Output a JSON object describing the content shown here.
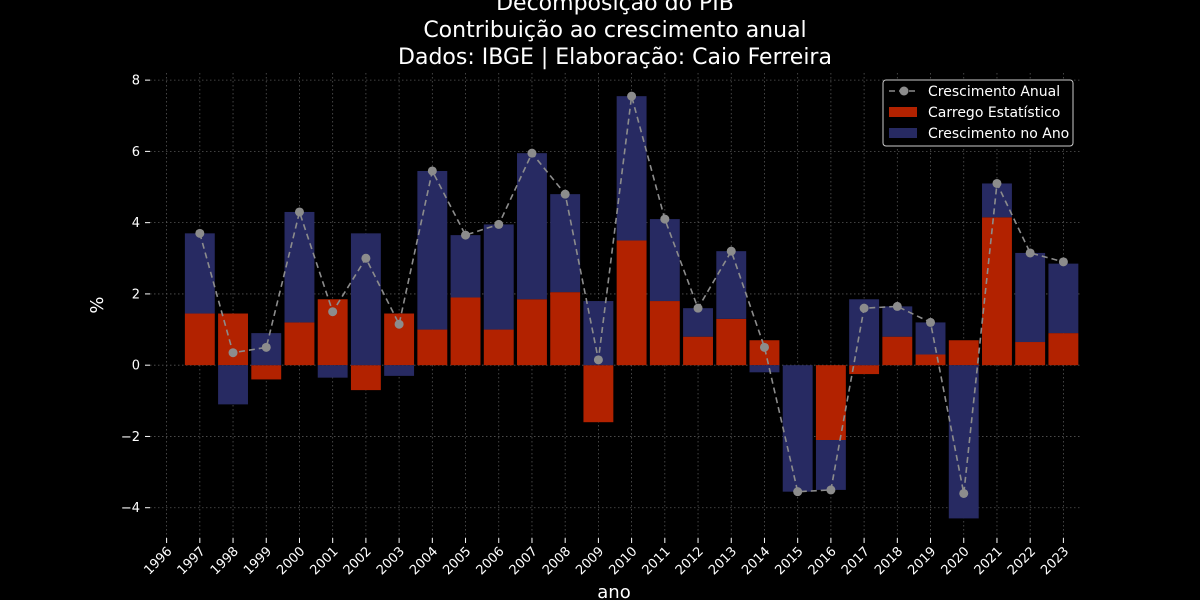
{
  "chart_data": {
    "type": "bar",
    "title_lines": [
      "Decomposição do PIB",
      "Contribuição ao crescimento anual",
      "Dados: IBGE | Elaboração: Caio Ferreira"
    ],
    "xlabel": "ano",
    "ylabel": "%",
    "ylim": [
      -4.85,
      8.2
    ],
    "yticks": [
      -4,
      -2,
      0,
      2,
      4,
      6,
      8
    ],
    "categories": [
      "1996",
      "1997",
      "1998",
      "1999",
      "2000",
      "2001",
      "2002",
      "2003",
      "2004",
      "2005",
      "2006",
      "2007",
      "2008",
      "2009",
      "2010",
      "2011",
      "2012",
      "2013",
      "2014",
      "2015",
      "2016",
      "2017",
      "2018",
      "2019",
      "2020",
      "2021",
      "2022",
      "2023"
    ],
    "grid": true,
    "legend_position": "top-right",
    "series": [
      {
        "name": "Crescimento Anual",
        "kind": "line",
        "color": "#8c8c8c",
        "values": [
          null,
          3.7,
          0.35,
          0.5,
          4.3,
          1.5,
          3.0,
          1.15,
          5.45,
          3.65,
          3.95,
          5.95,
          4.8,
          0.15,
          7.55,
          4.1,
          1.6,
          3.2,
          0.5,
          -3.55,
          -3.5,
          1.6,
          1.65,
          1.2,
          -3.6,
          5.1,
          3.15,
          2.9
        ]
      },
      {
        "name": "Carrego Estatístico",
        "kind": "bar",
        "color": "#b22200",
        "values": [
          null,
          1.45,
          1.45,
          -0.4,
          1.2,
          1.85,
          -0.7,
          1.45,
          1.0,
          1.9,
          1.0,
          1.85,
          2.05,
          -1.6,
          3.5,
          1.8,
          0.8,
          1.3,
          0.7,
          0.0,
          -2.1,
          -0.25,
          0.8,
          0.3,
          0.7,
          4.15,
          0.65,
          0.9
        ]
      },
      {
        "name": "Crescimento no Ano",
        "kind": "bar",
        "color": "#272a62",
        "values": [
          null,
          2.25,
          -1.1,
          0.9,
          3.1,
          -0.35,
          3.7,
          -0.3,
          4.45,
          1.75,
          2.95,
          4.1,
          2.75,
          1.8,
          4.05,
          2.3,
          0.8,
          1.9,
          -0.2,
          -3.55,
          -1.4,
          1.85,
          0.85,
          0.9,
          -4.3,
          0.95,
          2.5,
          1.95
        ]
      }
    ]
  }
}
